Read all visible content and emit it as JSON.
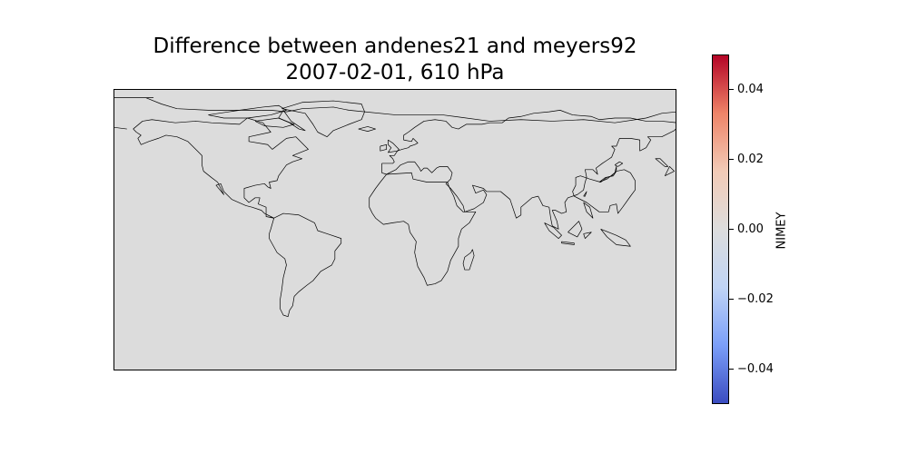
{
  "title": {
    "line1": "Difference between andenes21 and meyers92",
    "line2": "2007-02-01, 610 hPa"
  },
  "map": {
    "projection": "PlateCarree",
    "field_fill_color": "#dcdcdc",
    "coastline_color": "#000000"
  },
  "colorbar": {
    "label": "NIMEY",
    "colormap": "coolwarm",
    "min": -0.05,
    "max": 0.05,
    "ticks": [
      {
        "value": 0.04,
        "label": "0.04"
      },
      {
        "value": 0.02,
        "label": "0.02"
      },
      {
        "value": 0.0,
        "label": "0.00"
      },
      {
        "value": -0.02,
        "label": "−0.02"
      },
      {
        "value": -0.04,
        "label": "−0.04"
      }
    ],
    "colors": [
      "#3b4cc0",
      "#7b9ff9",
      "#c0d4f5",
      "#dddddd",
      "#f2cbb7",
      "#ee8468",
      "#b40426"
    ]
  }
}
